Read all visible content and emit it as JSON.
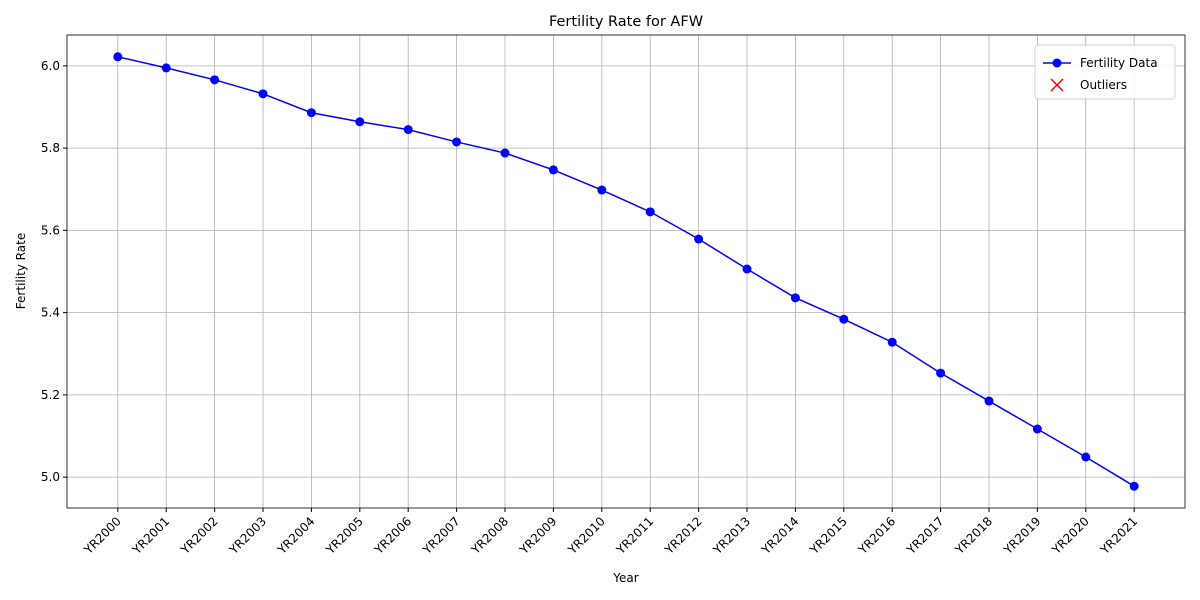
{
  "chart_data": {
    "type": "line",
    "title": "Fertility Rate for AFW",
    "x_label": "Year",
    "y_label": "Fertility Rate",
    "categories": [
      "YR2000",
      "YR2001",
      "YR2002",
      "YR2003",
      "YR2004",
      "YR2005",
      "YR2006",
      "YR2007",
      "YR2008",
      "YR2009",
      "YR2010",
      "YR2011",
      "YR2012",
      "YR2013",
      "YR2014",
      "YR2015",
      "YR2016",
      "YR2017",
      "YR2018",
      "YR2019",
      "YR2020",
      "YR2021"
    ],
    "series": [
      {
        "name": "Fertility Data",
        "color": "#0000ff",
        "marker": "o",
        "values": [
          6.022,
          5.995,
          5.966,
          5.932,
          5.886,
          5.864,
          5.845,
          5.815,
          5.788,
          5.747,
          5.698,
          5.645,
          5.579,
          5.506,
          5.436,
          5.384,
          5.328,
          5.253,
          5.185,
          5.117,
          5.049,
          4.978
        ]
      },
      {
        "name": "Outliers",
        "color": "#ff0000",
        "marker": "x",
        "values": [
          null,
          null,
          null,
          null,
          null,
          null,
          null,
          null,
          null,
          null,
          null,
          null,
          null,
          null,
          null,
          null,
          null,
          null,
          null,
          null,
          null,
          null
        ]
      }
    ],
    "ylim": [
      4.925,
      6.075
    ],
    "yticks": [
      {
        "value": 5.0,
        "label": "5.0"
      },
      5.2,
      5.4,
      5.6,
      5.8,
      {
        "value": 6.0,
        "label": "6.0"
      }
    ],
    "grid": true,
    "legend": "upper right"
  }
}
